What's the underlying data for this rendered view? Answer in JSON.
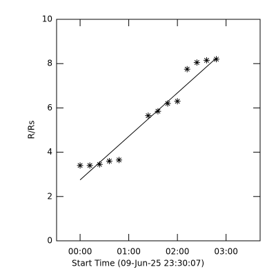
{
  "chart_data": {
    "type": "scatter",
    "xlabel": "Start Time (09-Jun-25 23:30:07)",
    "ylabel": "R/Rs",
    "x": [
      0,
      12,
      24,
      36,
      48,
      84,
      96,
      108,
      120,
      132,
      144,
      156,
      168
    ],
    "values": [
      3.4,
      3.4,
      3.45,
      3.6,
      3.65,
      5.65,
      5.85,
      6.2,
      6.3,
      7.75,
      8.05,
      8.15,
      8.2
    ],
    "color": "#000000",
    "fit": {
      "x": [
        0,
        168
      ],
      "values": [
        2.75,
        8.25
      ]
    },
    "xlim": [
      -29,
      222
    ],
    "ylim": [
      0,
      10
    ],
    "xticks": [
      {
        "value": 0,
        "label": "00:00"
      },
      {
        "value": 60,
        "label": "01:00"
      },
      {
        "value": 120,
        "label": "02:00"
      },
      {
        "value": 180,
        "label": "03:00"
      }
    ],
    "yticks": [
      0,
      2,
      4,
      6,
      8,
      10
    ]
  }
}
